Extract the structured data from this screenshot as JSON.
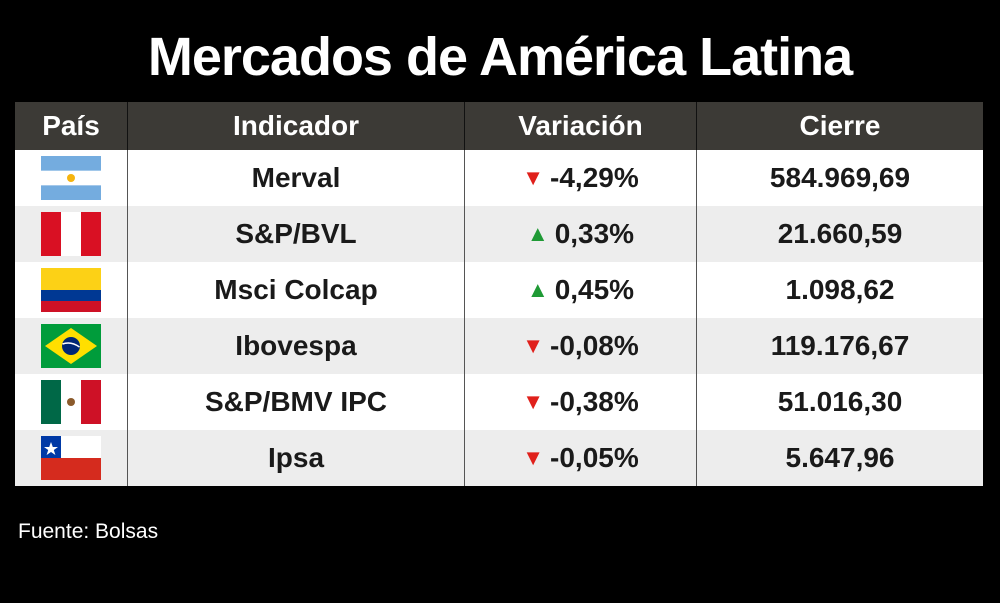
{
  "title": "Mercados de América Latina",
  "chart_data": {
    "type": "table",
    "columns": [
      "País",
      "Indicador",
      "Variación",
      "Cierre"
    ],
    "rows": [
      {
        "flag": "argentina-flag-icon",
        "indicator": "Merval",
        "direction": "down",
        "variation": "-4,29%",
        "close": "584.969,69"
      },
      {
        "flag": "peru-flag-icon",
        "indicator": "S&P/BVL",
        "direction": "up",
        "variation": "0,33%",
        "close": "21.660,59"
      },
      {
        "flag": "colombia-flag-icon",
        "indicator": "Msci Colcap",
        "direction": "up",
        "variation": "0,45%",
        "close": "1.098,62"
      },
      {
        "flag": "brazil-flag-icon",
        "indicator": "Ibovespa",
        "direction": "down",
        "variation": "-0,08%",
        "close": "119.176,67"
      },
      {
        "flag": "mexico-flag-icon",
        "indicator": "S&P/BMV IPC",
        "direction": "down",
        "variation": "-0,38%",
        "close": "51.016,30"
      },
      {
        "flag": "chile-flag-icon",
        "indicator": "Ipsa",
        "direction": "down",
        "variation": "-0,05%",
        "close": "5.647,96"
      }
    ]
  },
  "source": "Fuente: Bolsas",
  "colors": {
    "background": "#000000",
    "header": "#3c3a36",
    "up": "#1f9a35",
    "down": "#e0201b"
  }
}
